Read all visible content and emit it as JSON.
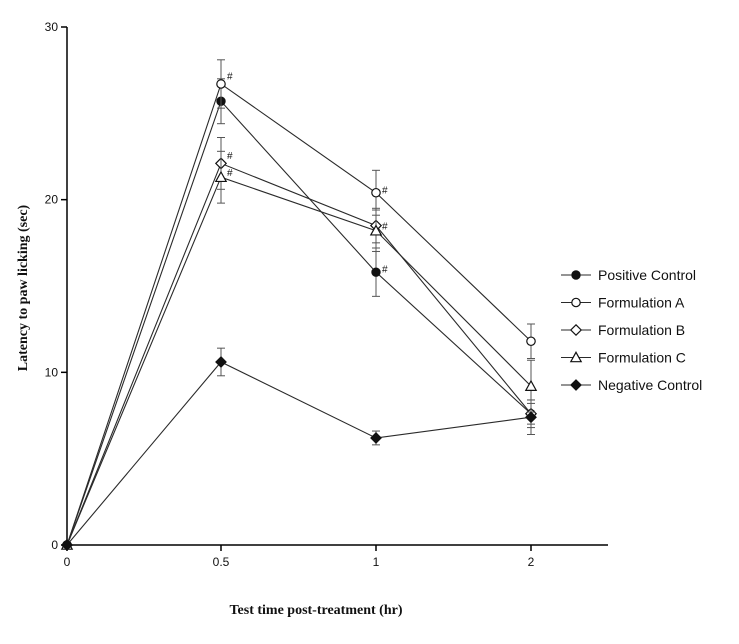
{
  "chart_data": {
    "type": "line",
    "title": "",
    "xlabel": "Test time post-treatment (hr)",
    "ylabel": "Latency to paw licking (sec)",
    "categories": [
      "0",
      "0.5",
      "1",
      "2"
    ],
    "ylim": [
      0,
      30
    ],
    "yticks": [
      0,
      10,
      20,
      30
    ],
    "grid": false,
    "legend_position": "right",
    "series": [
      {
        "name": "Positive Control",
        "marker": "filled-circle",
        "values": [
          0,
          25.7,
          15.8,
          7.6
        ],
        "errors": [
          0,
          1.3,
          1.4,
          0.8
        ]
      },
      {
        "name": "Formulation A",
        "marker": "open-circle",
        "values": [
          0,
          26.7,
          20.4,
          11.8
        ],
        "errors": [
          0,
          1.4,
          1.3,
          1.0
        ]
      },
      {
        "name": "Formulation B",
        "marker": "open-diamond",
        "values": [
          0,
          22.1,
          18.5,
          7.6
        ],
        "errors": [
          0,
          1.5,
          1.0,
          0.6
        ]
      },
      {
        "name": "Formulation C",
        "marker": "open-triangle",
        "values": [
          0,
          21.3,
          18.2,
          9.2
        ],
        "errors": [
          0,
          1.5,
          1.2,
          1.5
        ]
      },
      {
        "name": "Negative Control",
        "marker": "filled-diamond",
        "values": [
          0,
          10.6,
          6.2,
          7.4
        ],
        "errors": [
          0,
          0.8,
          0.4,
          1.0
        ]
      }
    ],
    "annotations": [
      {
        "text": "#",
        "category": "0.5",
        "y": 27.2
      },
      {
        "text": "#",
        "category": "0.5",
        "y": 22.6
      },
      {
        "text": "#",
        "category": "0.5",
        "y": 21.6
      },
      {
        "text": "#",
        "category": "1",
        "y": 16.0
      },
      {
        "text": "#",
        "category": "1",
        "y": 20.6
      },
      {
        "text": "#",
        "category": "1",
        "y": 18.5
      }
    ],
    "colors": {
      "line": "#2a2a2a",
      "marker": "#111111",
      "axis": "#000000"
    }
  }
}
